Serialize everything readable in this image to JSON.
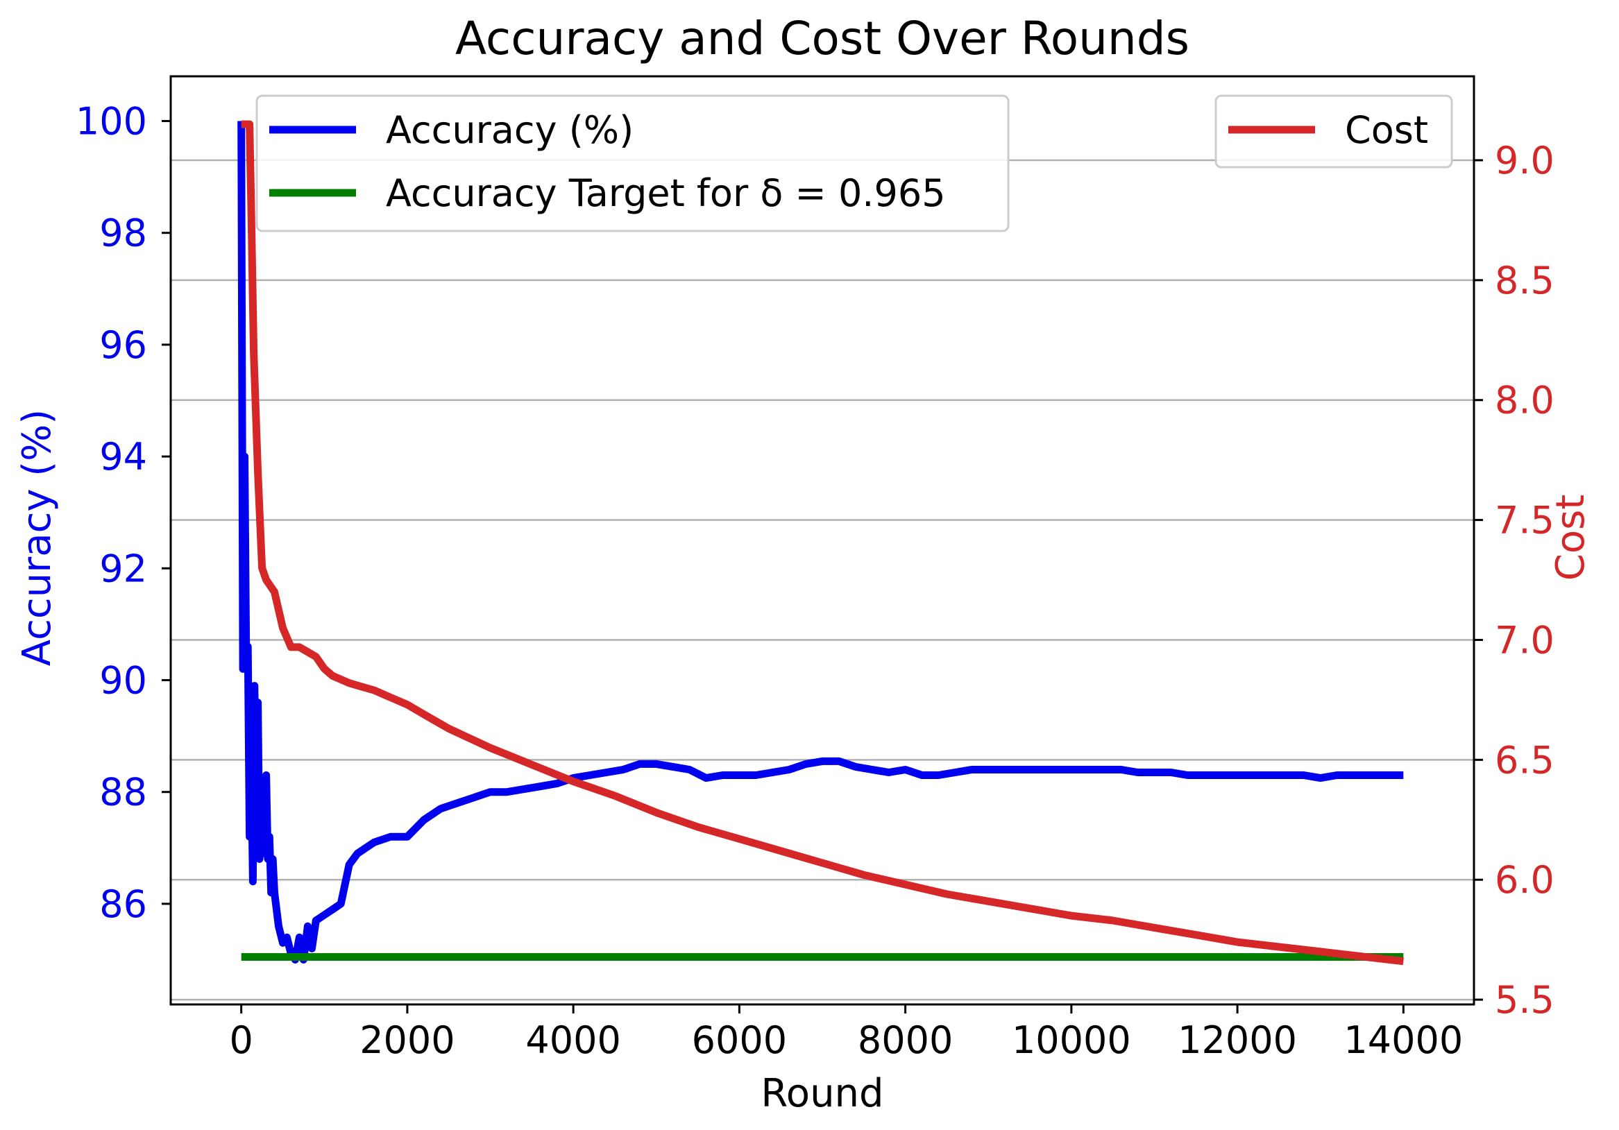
{
  "chart_data": {
    "type": "line",
    "title": "Accuracy and Cost Over Rounds",
    "xlabel": "Round",
    "ylabel_left": "Accuracy (%)",
    "ylabel_right": "Cost",
    "xlim": [
      -850,
      14850
    ],
    "ylim_left": [
      84.2,
      100.8
    ],
    "ylim_right": [
      5.48,
      9.35
    ],
    "x_ticks": [
      0,
      2000,
      4000,
      6000,
      8000,
      10000,
      12000,
      14000
    ],
    "x_tick_labels": [
      "0",
      "2000",
      "4000",
      "6000",
      "8000",
      "10000",
      "12000",
      "14000"
    ],
    "y_left_ticks": [
      86,
      88,
      90,
      92,
      94,
      96,
      98,
      100
    ],
    "y_left_tick_labels": [
      "86",
      "88",
      "90",
      "92",
      "94",
      "96",
      "98",
      "100"
    ],
    "y_right_ticks": [
      5.5,
      6.0,
      6.5,
      7.0,
      7.5,
      8.0,
      8.5,
      9.0
    ],
    "y_right_tick_labels": [
      "5.5",
      "6.0",
      "6.5",
      "7.0",
      "7.5",
      "8.0",
      "8.5",
      "9.0"
    ],
    "grid": "horizontal, right axis",
    "legend_left": {
      "placement": "upper-left",
      "entries": [
        "Accuracy (%)",
        "Accuracy Target for δ = 0.965"
      ]
    },
    "legend_right": {
      "placement": "upper-right",
      "entries": [
        "Cost"
      ]
    },
    "colors": {
      "accuracy": "#0000ee",
      "target": "#008000",
      "cost": "#d62728",
      "left_axis": "#0000ee",
      "right_axis": "#d62728"
    },
    "series": [
      {
        "name": "Accuracy (%)",
        "axis": "left",
        "x": [
          0,
          20,
          40,
          60,
          80,
          100,
          120,
          140,
          160,
          180,
          200,
          220,
          240,
          260,
          280,
          300,
          320,
          340,
          360,
          380,
          400,
          450,
          500,
          550,
          600,
          650,
          700,
          750,
          800,
          850,
          900,
          1000,
          1100,
          1200,
          1300,
          1400,
          1500,
          1600,
          1800,
          2000,
          2200,
          2400,
          2600,
          2800,
          3000,
          3200,
          3400,
          3600,
          3800,
          4000,
          4200,
          4400,
          4600,
          4800,
          5000,
          5200,
          5400,
          5600,
          5800,
          6000,
          6200,
          6400,
          6600,
          6800,
          7000,
          7200,
          7400,
          7600,
          7800,
          8000,
          8200,
          8400,
          8600,
          8800,
          9000,
          9200,
          9400,
          9600,
          9800,
          10000,
          10200,
          10400,
          10600,
          10800,
          11000,
          11200,
          11400,
          11600,
          11800,
          12000,
          12200,
          12400,
          12600,
          12800,
          13000,
          13200,
          13400,
          13600,
          13800,
          14000
        ],
        "values": [
          100.0,
          90.2,
          94.0,
          90.3,
          90.6,
          87.2,
          88.5,
          86.4,
          89.9,
          87.1,
          89.6,
          86.8,
          87.4,
          88.1,
          86.9,
          88.3,
          86.8,
          87.2,
          86.2,
          86.8,
          86.2,
          85.6,
          85.3,
          85.4,
          85.1,
          85.0,
          85.4,
          85.0,
          85.6,
          85.2,
          85.7,
          85.8,
          85.9,
          86.0,
          86.7,
          86.9,
          87.0,
          87.1,
          87.2,
          87.2,
          87.5,
          87.7,
          87.8,
          87.9,
          88.0,
          88.0,
          88.05,
          88.1,
          88.15,
          88.25,
          88.3,
          88.35,
          88.4,
          88.5,
          88.5,
          88.45,
          88.4,
          88.25,
          88.3,
          88.3,
          88.3,
          88.35,
          88.4,
          88.5,
          88.55,
          88.55,
          88.45,
          88.4,
          88.35,
          88.4,
          88.3,
          88.3,
          88.35,
          88.4,
          88.4,
          88.4,
          88.4,
          88.4,
          88.4,
          88.4,
          88.4,
          88.4,
          88.4,
          88.35,
          88.35,
          88.35,
          88.3,
          88.3,
          88.3,
          88.3,
          88.3,
          88.3,
          88.3,
          88.3,
          88.25,
          88.3,
          88.3,
          88.3,
          88.3,
          88.3
        ]
      },
      {
        "name": "Accuracy Target for δ = 0.965",
        "axis": "left",
        "x": [
          0,
          14000
        ],
        "values": [
          85.05,
          85.05
        ]
      },
      {
        "name": "Cost",
        "axis": "right",
        "x": [
          0,
          50,
          100,
          120,
          150,
          200,
          250,
          300,
          400,
          500,
          600,
          700,
          800,
          900,
          1000,
          1100,
          1300,
          1600,
          1800,
          2000,
          2200,
          2500,
          3000,
          3500,
          4000,
          4500,
          5000,
          5500,
          6000,
          6500,
          7000,
          7500,
          8000,
          8500,
          9000,
          9500,
          10000,
          10500,
          11000,
          11500,
          12000,
          12500,
          13000,
          13500,
          14000
        ],
        "values": [
          9.15,
          9.15,
          9.15,
          8.8,
          8.2,
          7.7,
          7.3,
          7.25,
          7.2,
          7.05,
          6.97,
          6.97,
          6.95,
          6.93,
          6.88,
          6.85,
          6.82,
          6.79,
          6.76,
          6.73,
          6.69,
          6.63,
          6.55,
          6.48,
          6.41,
          6.35,
          6.28,
          6.22,
          6.17,
          6.12,
          6.07,
          6.02,
          5.98,
          5.94,
          5.91,
          5.88,
          5.85,
          5.83,
          5.8,
          5.77,
          5.74,
          5.72,
          5.7,
          5.68,
          5.66
        ]
      }
    ]
  }
}
